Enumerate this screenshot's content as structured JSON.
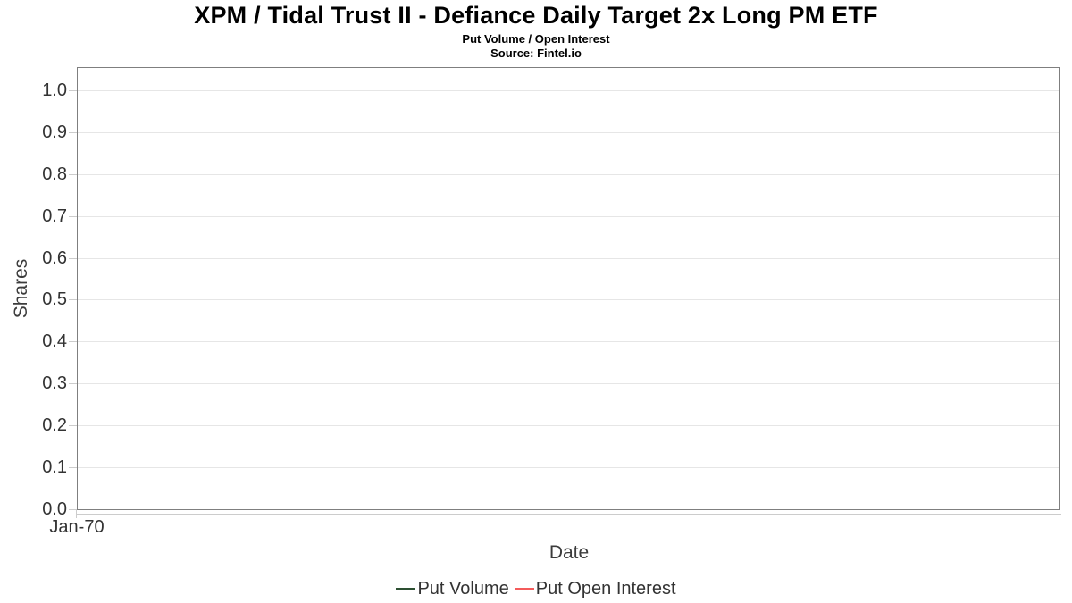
{
  "header": {
    "title": "XPM / Tidal Trust II - Defiance Daily Target 2x Long PM ETF",
    "subtitle": "Put Volume / Open Interest",
    "source": "Source: Fintel.io"
  },
  "chart_data": {
    "type": "line",
    "title": "XPM / Tidal Trust II - Defiance Daily Target 2x Long PM ETF",
    "subtitle": "Put Volume / Open Interest",
    "source_note": "Source: Fintel.io",
    "xlabel": "Date",
    "ylabel": "Shares",
    "x_tick_labels": [
      "Jan-70"
    ],
    "y_tick_labels": [
      "0.0",
      "0.1",
      "0.2",
      "0.3",
      "0.4",
      "0.5",
      "0.6",
      "0.7",
      "0.8",
      "0.9",
      "1.0"
    ],
    "ylim": [
      0.0,
      1.05
    ],
    "grid": "horizontal-only",
    "legend_position": "bottom-center",
    "series": [
      {
        "name": "Put Volume",
        "color": "#2d5032",
        "x": [],
        "values": []
      },
      {
        "name": "Put Open Interest",
        "color": "#f45b5b",
        "x": [],
        "values": []
      }
    ],
    "note": "empty plot area - no data points rendered"
  },
  "colors": {
    "background": "#ffffff",
    "plot_border": "#7f7f7f",
    "gridline": "#e6e6e6",
    "axis_line": "#cccccc",
    "tick_label": "#333333",
    "axis_title": "#3c3c3c",
    "legend_text": "#333333",
    "title_text": "#000000"
  }
}
